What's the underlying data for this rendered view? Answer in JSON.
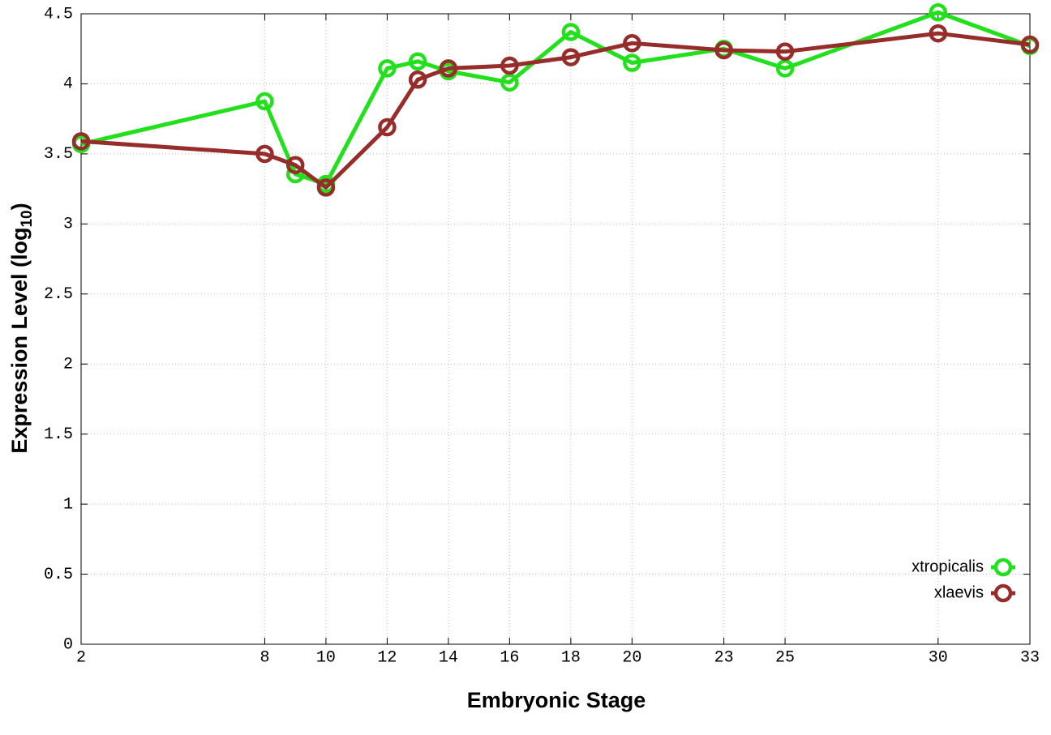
{
  "chart_data": {
    "type": "line",
    "x_label": "Embryonic Stage",
    "y_label_parts": [
      "Expression Level (log",
      "10",
      ")"
    ],
    "xlim": [
      2,
      33
    ],
    "xticks": [
      2,
      8,
      10,
      12,
      14,
      16,
      18,
      20,
      23,
      25,
      30,
      33
    ],
    "ylim": [
      0,
      4.5
    ],
    "yticks": [
      0,
      0.5,
      1,
      1.5,
      2,
      2.5,
      3,
      3.5,
      4,
      4.5
    ],
    "grid": true,
    "legend": "lower right",
    "x": [
      2,
      8,
      9,
      10,
      12,
      13,
      14,
      16,
      18,
      20,
      23,
      25,
      30,
      33
    ],
    "series": [
      {
        "name": "xtropicalis",
        "color": "#22e01c",
        "values": [
          3.57,
          3.875,
          3.355,
          3.285,
          4.11,
          4.16,
          4.09,
          4.01,
          4.37,
          4.15,
          4.25,
          4.11,
          4.51,
          4.27
        ]
      },
      {
        "name": "xlaevis",
        "color": "#962d2a",
        "values": [
          3.59,
          3.5,
          3.42,
          3.26,
          3.69,
          4.03,
          4.11,
          4.13,
          4.19,
          4.29,
          4.24,
          4.23,
          4.36,
          4.28
        ]
      }
    ]
  }
}
